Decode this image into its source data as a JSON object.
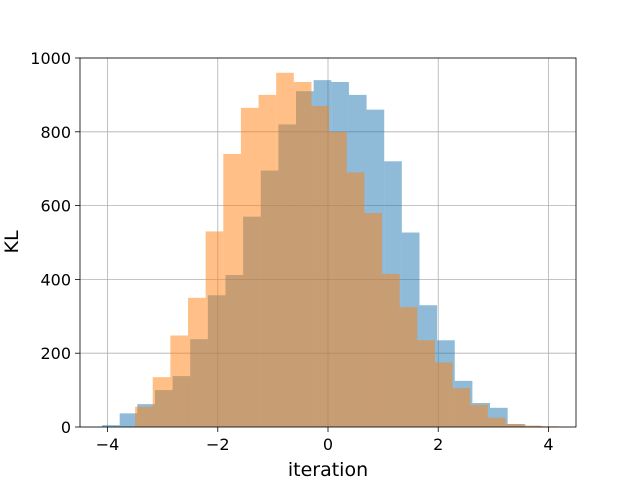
{
  "chart_data": {
    "type": "bar",
    "xlabel": "iteration",
    "ylabel": "KL",
    "xlim": [
      -4.5,
      4.5
    ],
    "ylim": [
      0,
      1000
    ],
    "grid": true,
    "xticks": [
      -4,
      -2,
      0,
      2,
      4
    ],
    "xtick_labels": [
      "−4",
      "−2",
      "0",
      "2",
      "4"
    ],
    "yticks": [
      0,
      200,
      400,
      600,
      800,
      1000
    ],
    "ytick_labels": [
      "0",
      "200",
      "400",
      "600",
      "800",
      "1000"
    ],
    "series": [
      {
        "color": "#1f77b4",
        "opacity": 0.5,
        "bin_edges": [
          -4.1,
          -3.78,
          -3.46,
          -3.14,
          -2.82,
          -2.5,
          -2.18,
          -1.86,
          -1.54,
          -1.22,
          -0.9,
          -0.58,
          -0.26,
          0.06,
          0.38,
          0.7,
          1.02,
          1.34,
          1.66,
          1.98,
          2.3,
          2.62,
          2.94,
          3.26,
          3.58,
          3.9
        ],
        "values": [
          5,
          37,
          62,
          100,
          138,
          238,
          357,
          412,
          570,
          695,
          820,
          910,
          940,
          935,
          900,
          860,
          720,
          527,
          330,
          235,
          125,
          65,
          52,
          8,
          2
        ]
      },
      {
        "color": "#ff7f0e",
        "opacity": 0.5,
        "bin_edges": [
          -3.5,
          -3.18,
          -2.86,
          -2.54,
          -2.22,
          -1.9,
          -1.58,
          -1.26,
          -0.94,
          -0.62,
          -0.3,
          0.02,
          0.34,
          0.66,
          0.98,
          1.3,
          1.62,
          1.94,
          2.26,
          2.58,
          2.9,
          3.22,
          3.54,
          3.86,
          4.18
        ],
        "values": [
          55,
          135,
          248,
          350,
          530,
          740,
          865,
          900,
          960,
          935,
          870,
          800,
          690,
          580,
          415,
          325,
          235,
          175,
          105,
          60,
          25,
          8,
          4,
          2
        ]
      }
    ]
  }
}
